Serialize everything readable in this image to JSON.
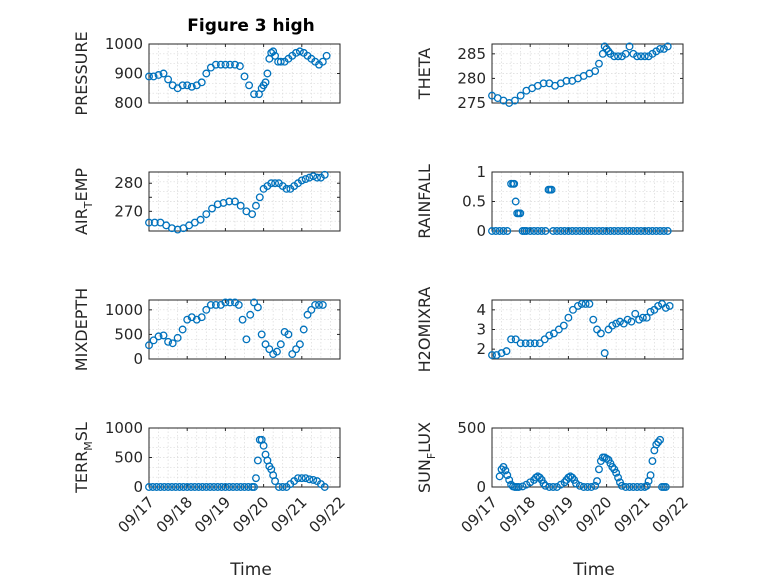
{
  "figure": {
    "title": "Figure 3 high",
    "x_ticks": [
      "09/17",
      "09/18",
      "09/19",
      "09/20",
      "09/21",
      "09/22"
    ],
    "xlabel": "Time",
    "marker_color": "#0072BD"
  },
  "chart_data": [
    {
      "type": "scatter",
      "title": "Figure 3 high",
      "ylabel_main": "PRESSURE",
      "ylabel_sub": "",
      "ylim": [
        800,
        1000
      ],
      "yticks": [
        800,
        900,
        1000
      ],
      "show_x_labels": false,
      "xlim": [
        0,
        5
      ],
      "grid": true,
      "x": [
        0.0,
        0.12,
        0.25,
        0.38,
        0.5,
        0.62,
        0.75,
        0.88,
        1.0,
        1.12,
        1.25,
        1.38,
        1.5,
        1.62,
        1.75,
        1.88,
        2.0,
        2.12,
        2.25,
        2.38,
        2.5,
        2.62,
        2.75,
        2.88,
        2.95,
        3.0,
        3.05,
        3.1,
        3.15,
        3.2,
        3.25,
        3.3,
        3.38,
        3.45,
        3.55,
        3.65,
        3.75,
        3.85,
        3.95,
        4.05,
        4.15,
        4.25,
        4.35,
        4.45,
        4.55,
        4.65
      ],
      "y": [
        890,
        890,
        895,
        900,
        880,
        860,
        850,
        860,
        860,
        855,
        860,
        870,
        900,
        920,
        930,
        930,
        930,
        930,
        930,
        925,
        890,
        860,
        830,
        830,
        850,
        860,
        870,
        900,
        950,
        970,
        975,
        960,
        940,
        940,
        940,
        950,
        960,
        970,
        975,
        970,
        960,
        950,
        940,
        930,
        940,
        960
      ]
    },
    {
      "type": "scatter",
      "ylabel_main": "THETA",
      "ylabel_sub": "",
      "ylim": [
        275,
        287
      ],
      "yticks": [
        275,
        280,
        285
      ],
      "show_x_labels": false,
      "xlim": [
        0,
        5
      ],
      "grid": true,
      "x": [
        0.0,
        0.15,
        0.3,
        0.45,
        0.6,
        0.75,
        0.9,
        1.05,
        1.2,
        1.35,
        1.5,
        1.65,
        1.8,
        1.95,
        2.1,
        2.25,
        2.4,
        2.55,
        2.7,
        2.8,
        2.9,
        2.95,
        3.0,
        3.05,
        3.1,
        3.2,
        3.3,
        3.4,
        3.5,
        3.6,
        3.7,
        3.8,
        3.9,
        4.0,
        4.1,
        4.2,
        4.3,
        4.4,
        4.5,
        4.6
      ],
      "y": [
        276.5,
        276,
        275.5,
        275,
        275.5,
        276.5,
        277.5,
        278,
        278.5,
        279,
        279,
        278.5,
        279,
        279.5,
        279.5,
        280,
        280.5,
        281,
        281.5,
        283,
        285,
        286.5,
        286,
        285.5,
        285,
        284.5,
        284.5,
        284.5,
        285,
        286.5,
        285,
        284.5,
        284.5,
        284.5,
        284.5,
        285,
        285.5,
        286,
        286,
        286.5
      ]
    },
    {
      "type": "scatter",
      "ylabel_main": "AIR",
      "ylabel_sub": "T",
      "ylabel_rest": "EMP",
      "ylim": [
        263,
        284
      ],
      "yticks": [
        270,
        275,
        280
      ],
      "ytick_labels": [
        "270",
        "",
        "280"
      ],
      "show_x_labels": false,
      "xlim": [
        0,
        5
      ],
      "grid": true,
      "x": [
        0.0,
        0.15,
        0.3,
        0.45,
        0.6,
        0.75,
        0.9,
        1.05,
        1.2,
        1.35,
        1.5,
        1.65,
        1.8,
        1.95,
        2.1,
        2.25,
        2.4,
        2.55,
        2.7,
        2.8,
        2.9,
        3.0,
        3.1,
        3.2,
        3.3,
        3.4,
        3.5,
        3.6,
        3.7,
        3.8,
        3.9,
        4.0,
        4.1,
        4.2,
        4.3,
        4.4,
        4.5,
        4.6
      ],
      "y": [
        266,
        266,
        266,
        265,
        264,
        263.5,
        264,
        265,
        266,
        267,
        269,
        271,
        272.5,
        273,
        273.5,
        273.5,
        272,
        270,
        269,
        272,
        275,
        278,
        279,
        280,
        280,
        280,
        279,
        278,
        278,
        279,
        280,
        281,
        281.5,
        282,
        282.5,
        282,
        282,
        283
      ]
    },
    {
      "type": "scatter",
      "ylabel_main": "RAINFALL",
      "ylabel_sub": "",
      "ylim": [
        0,
        1
      ],
      "yticks": [
        0,
        0.5,
        1
      ],
      "ytick_labels": [
        "0",
        "0.5",
        "1"
      ],
      "show_x_labels": false,
      "xlim": [
        0,
        5
      ],
      "grid": true,
      "x": [
        0.0,
        0.1,
        0.2,
        0.3,
        0.4,
        0.5,
        0.55,
        0.58,
        0.62,
        0.66,
        0.7,
        0.74,
        0.8,
        0.85,
        0.9,
        1.0,
        1.1,
        1.2,
        1.3,
        1.4,
        1.48,
        1.52,
        1.56,
        1.6,
        1.7,
        1.8,
        1.9,
        2.0,
        2.1,
        2.2,
        2.3,
        2.4,
        2.5,
        2.6,
        2.7,
        2.8,
        2.9,
        3.0,
        3.1,
        3.2,
        3.3,
        3.4,
        3.5,
        3.6,
        3.7,
        3.8,
        3.9,
        4.0,
        4.1,
        4.2,
        4.3,
        4.4,
        4.5,
        4.6
      ],
      "y": [
        0,
        0,
        0,
        0,
        0,
        0.8,
        0.8,
        0.8,
        0.5,
        0.3,
        0.3,
        0.3,
        0,
        0,
        0,
        0,
        0,
        0,
        0,
        0,
        0.7,
        0.7,
        0.7,
        0,
        0,
        0,
        0,
        0,
        0,
        0,
        0,
        0,
        0,
        0,
        0,
        0,
        0,
        0,
        0,
        0,
        0,
        0,
        0,
        0,
        0,
        0,
        0,
        0,
        0,
        0,
        0,
        0,
        0,
        0
      ]
    },
    {
      "type": "scatter",
      "ylabel_main": "MIXDEPTH",
      "ylabel_sub": "",
      "ylim": [
        0,
        1200
      ],
      "yticks": [
        0,
        500,
        1000
      ],
      "show_x_labels": false,
      "xlim": [
        0,
        5
      ],
      "grid": true,
      "x": [
        0.0,
        0.12,
        0.25,
        0.38,
        0.5,
        0.62,
        0.75,
        0.88,
        1.0,
        1.12,
        1.25,
        1.38,
        1.5,
        1.62,
        1.75,
        1.88,
        2.0,
        2.12,
        2.25,
        2.35,
        2.45,
        2.55,
        2.65,
        2.75,
        2.85,
        2.95,
        3.05,
        3.15,
        3.25,
        3.35,
        3.45,
        3.55,
        3.65,
        3.75,
        3.85,
        3.95,
        4.05,
        4.15,
        4.25,
        4.35,
        4.45,
        4.55
      ],
      "y": [
        280,
        380,
        460,
        480,
        350,
        320,
        430,
        600,
        800,
        850,
        800,
        850,
        1000,
        1100,
        1100,
        1100,
        1150,
        1150,
        1150,
        1100,
        800,
        400,
        900,
        1150,
        1050,
        500,
        300,
        200,
        100,
        150,
        300,
        550,
        500,
        100,
        200,
        300,
        600,
        900,
        1000,
        1100,
        1100,
        1100
      ]
    },
    {
      "type": "scatter",
      "ylabel_main": "H2OMIXRA",
      "ylabel_sub": "",
      "ylim": [
        1.5,
        4.5
      ],
      "yticks": [
        2,
        3,
        4
      ],
      "show_x_labels": false,
      "xlim": [
        0,
        5
      ],
      "grid": true,
      "x": [
        0.0,
        0.12,
        0.25,
        0.38,
        0.5,
        0.62,
        0.75,
        0.88,
        1.0,
        1.12,
        1.25,
        1.38,
        1.5,
        1.62,
        1.75,
        1.88,
        2.0,
        2.12,
        2.25,
        2.35,
        2.45,
        2.55,
        2.65,
        2.75,
        2.85,
        2.95,
        3.05,
        3.15,
        3.25,
        3.35,
        3.45,
        3.55,
        3.65,
        3.75,
        3.85,
        3.95,
        4.05,
        4.15,
        4.25,
        4.35,
        4.45,
        4.55,
        4.65
      ],
      "y": [
        1.7,
        1.7,
        1.8,
        1.9,
        2.5,
        2.5,
        2.3,
        2.3,
        2.3,
        2.3,
        2.3,
        2.5,
        2.7,
        2.8,
        3.0,
        3.2,
        3.6,
        4.0,
        4.2,
        4.3,
        4.3,
        4.3,
        3.5,
        3.0,
        2.8,
        1.8,
        3.0,
        3.2,
        3.3,
        3.4,
        3.3,
        3.5,
        3.4,
        3.8,
        3.5,
        3.6,
        3.6,
        3.9,
        4.0,
        4.2,
        4.3,
        4.1,
        4.2
      ]
    },
    {
      "type": "scatter",
      "ylabel_main": "TERR",
      "ylabel_sub": "M",
      "ylabel_rest": "SL",
      "ylim": [
        0,
        1000
      ],
      "yticks": [
        0,
        500,
        1000
      ],
      "show_x_labels": true,
      "xlim": [
        0,
        5
      ],
      "grid": true,
      "x": [
        0.0,
        0.1,
        0.2,
        0.3,
        0.4,
        0.5,
        0.6,
        0.7,
        0.8,
        0.9,
        1.0,
        1.1,
        1.2,
        1.3,
        1.4,
        1.5,
        1.6,
        1.7,
        1.8,
        1.9,
        2.0,
        2.1,
        2.2,
        2.3,
        2.4,
        2.5,
        2.6,
        2.7,
        2.75,
        2.8,
        2.85,
        2.9,
        2.95,
        3.0,
        3.05,
        3.1,
        3.15,
        3.2,
        3.25,
        3.3,
        3.4,
        3.5,
        3.6,
        3.7,
        3.8,
        3.9,
        4.0,
        4.1,
        4.2,
        4.3,
        4.4,
        4.5,
        4.6
      ],
      "y": [
        0,
        0,
        0,
        0,
        0,
        0,
        0,
        0,
        0,
        0,
        0,
        0,
        0,
        0,
        0,
        0,
        0,
        0,
        0,
        0,
        0,
        0,
        0,
        0,
        0,
        0,
        0,
        0,
        0,
        150,
        450,
        800,
        800,
        700,
        550,
        450,
        350,
        300,
        200,
        100,
        0,
        0,
        0,
        50,
        100,
        150,
        150,
        150,
        130,
        120,
        100,
        50,
        0
      ]
    },
    {
      "type": "scatter",
      "ylabel_main": "SUN",
      "ylabel_sub": "F",
      "ylabel_rest": "LUX",
      "ylim": [
        0,
        500
      ],
      "yticks": [
        0,
        500
      ],
      "show_x_labels": true,
      "xlim": [
        0,
        5
      ],
      "grid": true,
      "x": [
        0.2,
        0.25,
        0.3,
        0.35,
        0.4,
        0.45,
        0.5,
        0.55,
        0.6,
        0.65,
        0.7,
        0.8,
        0.9,
        1.0,
        1.1,
        1.15,
        1.2,
        1.25,
        1.3,
        1.35,
        1.4,
        1.5,
        1.6,
        1.7,
        1.8,
        1.9,
        1.95,
        2.0,
        2.05,
        2.1,
        2.15,
        2.2,
        2.3,
        2.4,
        2.5,
        2.6,
        2.7,
        2.75,
        2.8,
        2.85,
        2.9,
        2.95,
        3.0,
        3.05,
        3.1,
        3.15,
        3.2,
        3.25,
        3.3,
        3.35,
        3.4,
        3.5,
        3.6,
        3.7,
        3.8,
        3.9,
        4.0,
        4.05,
        4.1,
        4.15,
        4.2,
        4.25,
        4.3,
        4.35,
        4.4,
        4.45,
        4.5,
        4.55
      ],
      "y": [
        90,
        150,
        170,
        140,
        100,
        60,
        20,
        5,
        0,
        0,
        0,
        5,
        20,
        40,
        60,
        80,
        90,
        80,
        60,
        30,
        10,
        0,
        0,
        0,
        20,
        40,
        60,
        80,
        90,
        80,
        60,
        30,
        10,
        0,
        0,
        0,
        10,
        50,
        150,
        220,
        250,
        250,
        240,
        230,
        200,
        170,
        150,
        120,
        80,
        40,
        10,
        0,
        0,
        0,
        0,
        0,
        0,
        10,
        50,
        100,
        220,
        310,
        360,
        380,
        400,
        0,
        0,
        0
      ]
    }
  ]
}
